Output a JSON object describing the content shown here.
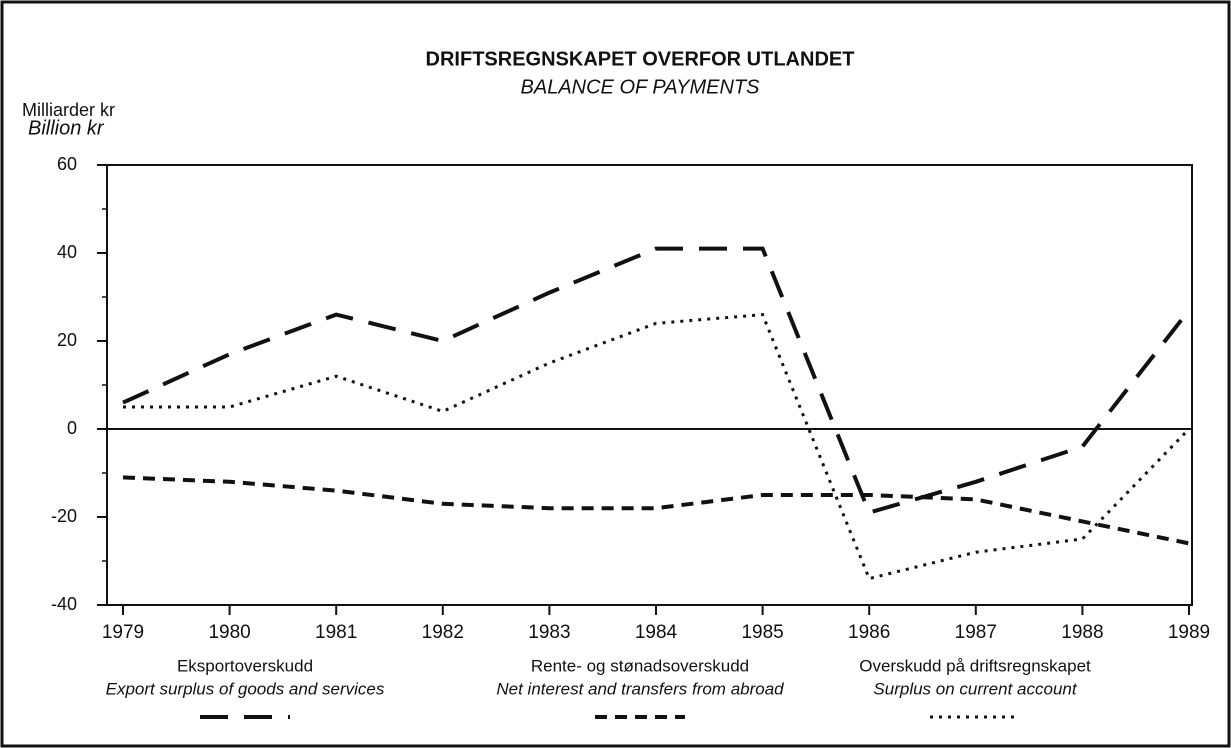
{
  "chart_data": {
    "type": "line",
    "title": "DRIFTSREGNSKAPET OVERFOR UTLANDET",
    "subtitle": "BALANCE OF PAYMENTS",
    "y_label": "Milliarder kr",
    "y_label_en": "Billion kr",
    "categories": [
      "1979",
      "1980",
      "1981",
      "1982",
      "1983",
      "1984",
      "1985",
      "1986",
      "1987",
      "1988",
      "1989"
    ],
    "series": [
      {
        "name": "Eksportoverskudd",
        "name_en": "Export surplus of goods and services",
        "color": "#111111",
        "dash": "long",
        "values": [
          6,
          17,
          26,
          20,
          31,
          41,
          41,
          -19,
          -12,
          -4,
          27
        ]
      },
      {
        "name": "Rente- og stønadsoverskudd",
        "name_en": "Net interest and transfers from abroad",
        "color": "#111111",
        "dash": "short",
        "values": [
          -11,
          -12,
          -14,
          -17,
          -18,
          -18,
          -15,
          -15,
          -16,
          -21,
          -26
        ]
      },
      {
        "name": "Overskudd på driftsregnskapet",
        "name_en": "Surplus on current account",
        "color": "#111111",
        "dash": "dot",
        "values": [
          5,
          5,
          12,
          4,
          15,
          24,
          26,
          -34,
          -28,
          -25,
          0
        ]
      }
    ],
    "ylim": [
      -40,
      60
    ],
    "yticks": [
      -40,
      -20,
      0,
      20,
      40,
      60
    ],
    "yminorticks": [
      -30,
      -10,
      10,
      30,
      50
    ],
    "grid": false,
    "legend": "bottom"
  }
}
